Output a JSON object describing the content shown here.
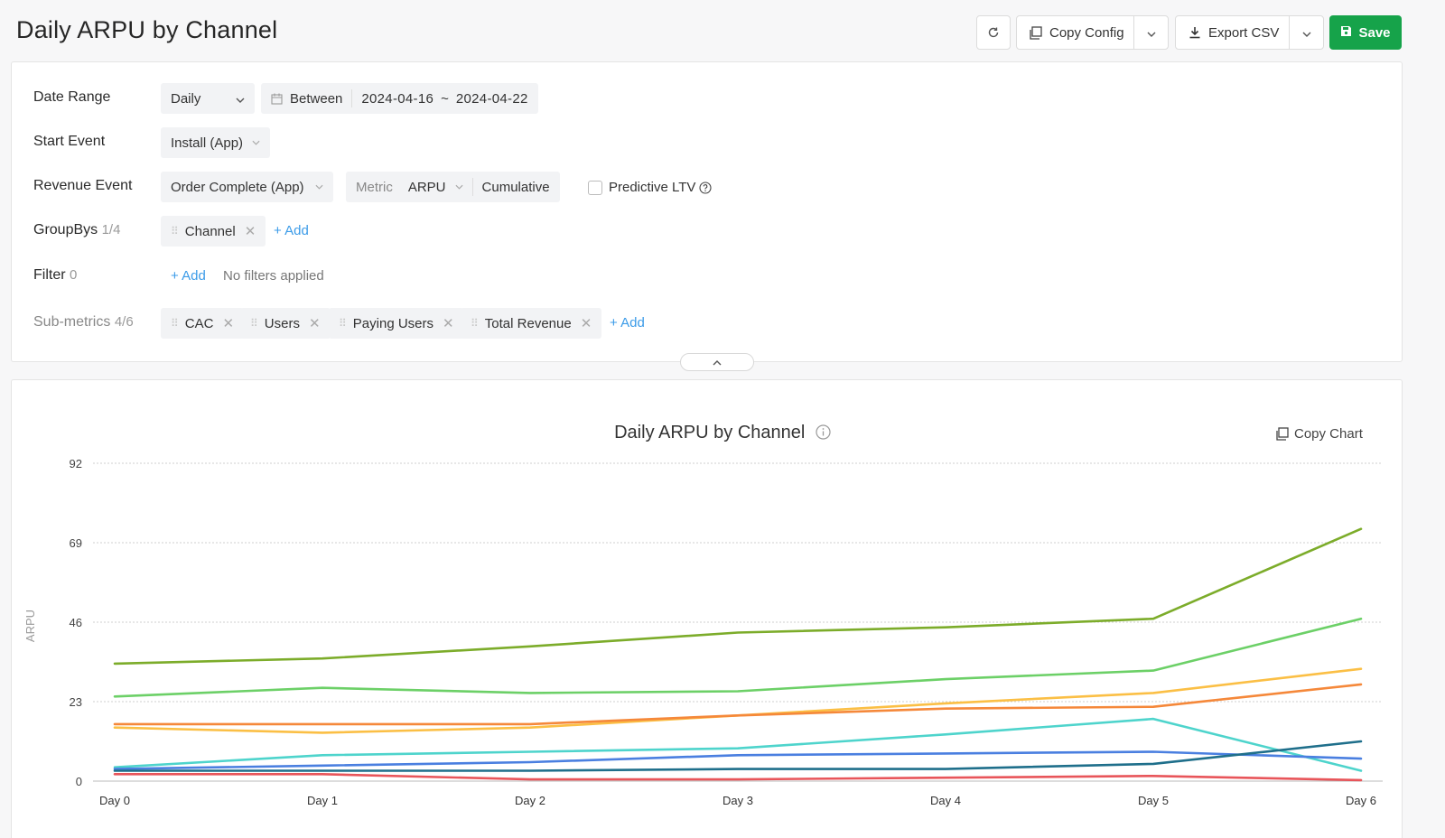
{
  "page": {
    "title": "Daily ARPU by Channel"
  },
  "toolbar": {
    "refresh_icon": "refresh-icon",
    "copy_config_label": "Copy Config",
    "export_csv_label": "Export CSV",
    "save_label": "Save"
  },
  "config": {
    "date_range": {
      "label": "Date Range",
      "granularity": "Daily",
      "mode": "Between",
      "start": "2024-04-16",
      "separator": "~",
      "end": "2024-04-22"
    },
    "start_event": {
      "label": "Start Event",
      "value": "Install (App)"
    },
    "revenue_event": {
      "label": "Revenue Event",
      "value": "Order Complete (App)",
      "metric_label": "Metric",
      "metric_value": "ARPU",
      "mode": "Cumulative",
      "predictive_label": "Predictive LTV"
    },
    "groupbys": {
      "label": "GroupBys",
      "count": "1/4",
      "items": [
        "Channel"
      ],
      "add_label": "+ Add"
    },
    "filter": {
      "label": "Filter",
      "count": "0",
      "add_label": "+ Add",
      "empty_text": "No filters applied"
    },
    "submetrics": {
      "label": "Sub-metrics",
      "count": "4/6",
      "items": [
        "CAC",
        "Users",
        "Paying Users",
        "Total Revenue"
      ],
      "add_label": "+ Add"
    }
  },
  "chart_header": {
    "title": "Daily ARPU by Channel",
    "copy_label": "Copy Chart"
  },
  "colors": {
    "save_green": "#16a34a",
    "link_blue": "#3b9be8"
  },
  "chart_data": {
    "type": "line",
    "title": "Daily ARPU by Channel",
    "ylabel": "ARPU",
    "xlabel": "",
    "ylim": [
      0,
      92
    ],
    "yticks": [
      0,
      23,
      46,
      69,
      92
    ],
    "grid": true,
    "categories": [
      "Day 0",
      "Day 1",
      "Day 2",
      "Day 3",
      "Day 4",
      "Day 5",
      "Day 6"
    ],
    "series": [
      {
        "color": "#7cac2a",
        "values": [
          34,
          35.5,
          39,
          43,
          44.5,
          47,
          73
        ]
      },
      {
        "color": "#6cd067",
        "values": [
          24.5,
          27,
          25.5,
          26,
          29.5,
          32,
          47
        ]
      },
      {
        "color": "#fbbf45",
        "values": [
          15.5,
          14,
          15.5,
          19,
          22.5,
          25.5,
          32.5
        ]
      },
      {
        "color": "#f5883a",
        "values": [
          16.5,
          16.5,
          16.5,
          19,
          21,
          21.5,
          28
        ]
      },
      {
        "color": "#4ed4cc",
        "values": [
          4,
          7.5,
          8.5,
          9.5,
          13.5,
          18,
          3
        ]
      },
      {
        "color": "#4a7fe0",
        "values": [
          3.5,
          4.5,
          5.5,
          7.5,
          8,
          8.5,
          6.5
        ]
      },
      {
        "color": "#1f6f8b",
        "values": [
          3,
          3,
          3,
          3.5,
          3.5,
          5,
          11.5
        ]
      },
      {
        "color": "#e8555a",
        "values": [
          2,
          2,
          0.5,
          0.5,
          1,
          1.5,
          0.3
        ]
      }
    ]
  }
}
